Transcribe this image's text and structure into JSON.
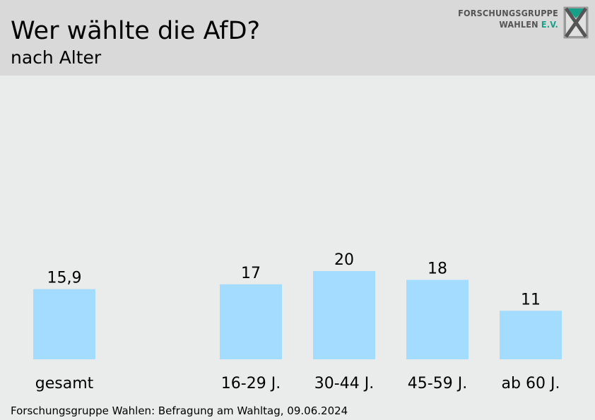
{
  "header": {
    "title": "Wer wählte die AfD?",
    "subtitle": "nach Alter",
    "logo_line1": "FORSCHUNGSGRUPPE",
    "logo_line2": "WAHLEN",
    "logo_line2_accent": "E.V.",
    "logo_icon": "fgw-x-logo-icon"
  },
  "colors": {
    "bar": "#a3dcff",
    "header_bg": "#d9d9d9",
    "page_bg": "#e9eceb",
    "logo_accent": "#16a088"
  },
  "chart_data": {
    "type": "bar",
    "title": "Wer wählte die AfD?",
    "subtitle": "nach Alter",
    "xlabel": "",
    "ylabel": "",
    "categories": [
      "gesamt",
      "16-29 J.",
      "30-44 J.",
      "45-59 J.",
      "ab 60 J."
    ],
    "values": [
      15.9,
      17,
      20,
      18,
      11
    ],
    "value_labels": [
      "15,9",
      "17",
      "20",
      "18",
      "11"
    ],
    "grid": false,
    "legend": "none"
  },
  "footer": {
    "source": "Forschungsgruppe Wahlen: Befragung am Wahltag, 09.06.2024"
  }
}
